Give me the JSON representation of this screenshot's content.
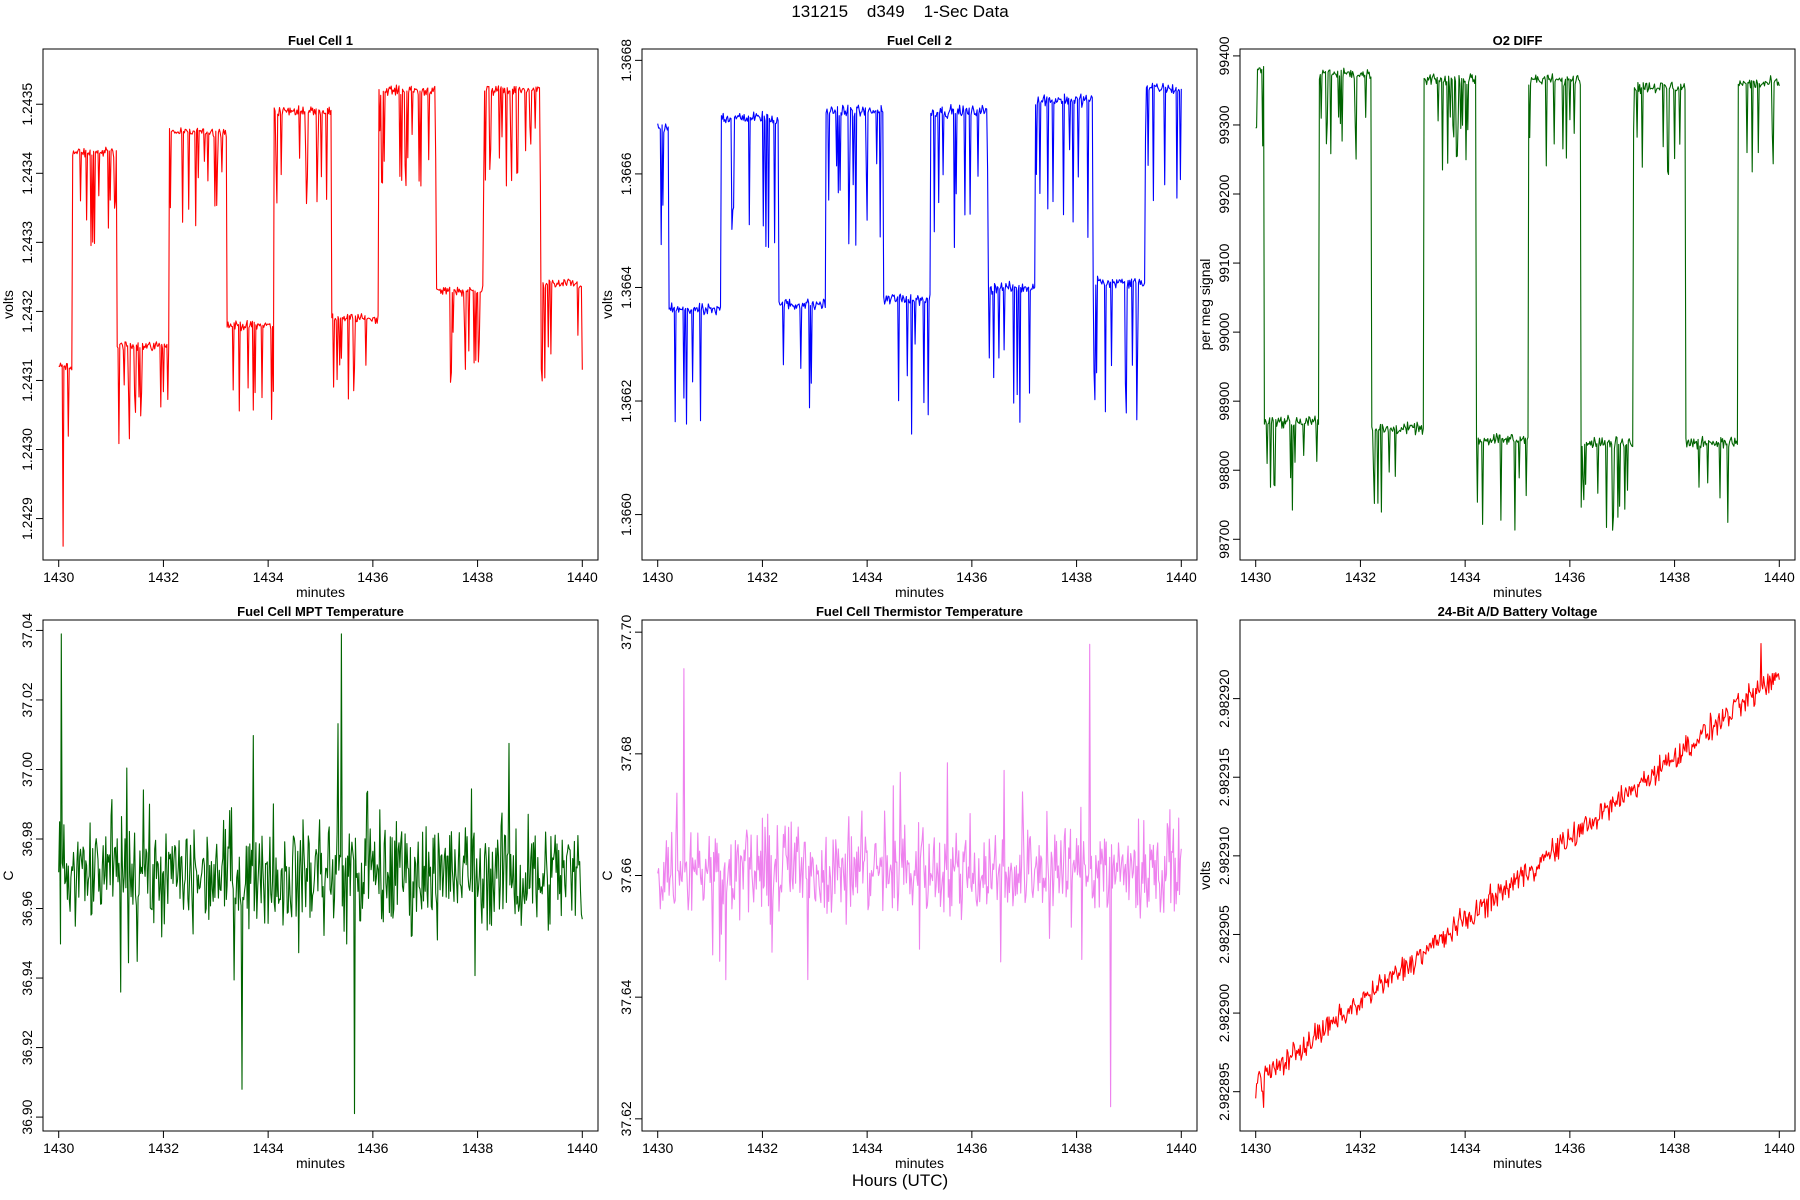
{
  "page": {
    "title": "131215    d349    1-Sec Data",
    "xlabel": "Hours (UTC)"
  },
  "colors": {
    "red": "#ff0000",
    "blue": "#0000ff",
    "green": "#006400",
    "violet": "#ee82ee"
  },
  "chart_data": [
    {
      "type": "line",
      "title": "Fuel Cell 1",
      "xlabel": "minutes",
      "ylabel": "volts",
      "xlim": [
        1429.7,
        1440.3
      ],
      "ylim": [
        1.24284,
        1.24358
      ],
      "xticks": [
        "1430",
        "1432",
        "1434",
        "1436",
        "1438",
        "1440"
      ],
      "yticks": [
        "1.2429",
        "1.2430",
        "1.2431",
        "1.2432",
        "1.2433",
        "1.2434",
        "1.2435"
      ],
      "grid": false,
      "series": [
        {
          "color": "red",
          "pattern": "square",
          "x_range": [
            1430.0,
            1440.0
          ],
          "segments": [
            {
              "x_start": 1430.0,
              "x_end": 1430.25,
              "level": 1.24312
            },
            {
              "x_start": 1430.25,
              "x_end": 1431.1,
              "level": 1.24343
            },
            {
              "x_start": 1431.1,
              "x_end": 1432.1,
              "level": 1.24315
            },
            {
              "x_start": 1432.1,
              "x_end": 1433.2,
              "level": 1.24346
            },
            {
              "x_start": 1433.2,
              "x_end": 1434.1,
              "level": 1.24318
            },
            {
              "x_start": 1434.1,
              "x_end": 1435.2,
              "level": 1.24349
            },
            {
              "x_start": 1435.2,
              "x_end": 1436.1,
              "level": 1.24319
            },
            {
              "x_start": 1436.1,
              "x_end": 1437.2,
              "level": 1.24352
            },
            {
              "x_start": 1437.2,
              "x_end": 1438.1,
              "level": 1.24323
            },
            {
              "x_start": 1438.1,
              "x_end": 1439.2,
              "level": 1.24352
            },
            {
              "x_start": 1439.2,
              "x_end": 1440.0,
              "level": 1.24324
            }
          ],
          "dip_depth": 0.00012,
          "noise": 1e-05,
          "min_point": {
            "x": 1430.08,
            "y": 1.24286
          }
        }
      ]
    },
    {
      "type": "line",
      "title": "Fuel Cell 2",
      "xlabel": "minutes",
      "ylabel": "volts",
      "xlim": [
        1429.7,
        1440.3
      ],
      "ylim": [
        1.36592,
        1.36682
      ],
      "xticks": [
        "1430",
        "1432",
        "1434",
        "1436",
        "1438",
        "1440"
      ],
      "yticks": [
        "1.3660",
        "1.3662",
        "1.3664",
        "1.3666",
        "1.3668"
      ],
      "grid": false,
      "series": [
        {
          "color": "blue",
          "pattern": "square",
          "x_range": [
            1430.0,
            1440.0
          ],
          "segments": [
            {
              "x_start": 1430.0,
              "x_end": 1430.2,
              "level": 1.36668
            },
            {
              "x_start": 1430.2,
              "x_end": 1431.2,
              "level": 1.36636
            },
            {
              "x_start": 1431.2,
              "x_end": 1432.3,
              "level": 1.3667
            },
            {
              "x_start": 1432.3,
              "x_end": 1433.2,
              "level": 1.36637
            },
            {
              "x_start": 1433.2,
              "x_end": 1434.3,
              "level": 1.36671
            },
            {
              "x_start": 1434.3,
              "x_end": 1435.2,
              "level": 1.36638
            },
            {
              "x_start": 1435.2,
              "x_end": 1436.3,
              "level": 1.36671
            },
            {
              "x_start": 1436.3,
              "x_end": 1437.2,
              "level": 1.3664
            },
            {
              "x_start": 1437.2,
              "x_end": 1438.3,
              "level": 1.36673
            },
            {
              "x_start": 1438.3,
              "x_end": 1439.3,
              "level": 1.36641
            },
            {
              "x_start": 1439.3,
              "x_end": 1440.0,
              "level": 1.36675
            }
          ],
          "dip_depth": 0.0002,
          "noise": 1.5e-05
        }
      ]
    },
    {
      "type": "line",
      "title": "O2 DIFF",
      "xlabel": "minutes",
      "ylabel": "per meg signal",
      "xlim": [
        1429.7,
        1440.3
      ],
      "ylim": [
        98670,
        99410
      ],
      "xticks": [
        "1430",
        "1432",
        "1434",
        "1436",
        "1438",
        "1440"
      ],
      "yticks": [
        "98700",
        "98800",
        "98900",
        "99000",
        "99100",
        "99200",
        "99300",
        "99400"
      ],
      "grid": false,
      "series": [
        {
          "color": "green",
          "pattern": "square",
          "x_range": [
            1430.0,
            1440.0
          ],
          "segments": [
            {
              "x_start": 1430.0,
              "x_end": 1430.15,
              "level": 99380
            },
            {
              "x_start": 1430.15,
              "x_end": 1431.2,
              "level": 98870
            },
            {
              "x_start": 1431.2,
              "x_end": 1432.2,
              "level": 99375
            },
            {
              "x_start": 1432.2,
              "x_end": 1433.2,
              "level": 98860
            },
            {
              "x_start": 1433.2,
              "x_end": 1434.2,
              "level": 99365
            },
            {
              "x_start": 1434.2,
              "x_end": 1435.2,
              "level": 98845
            },
            {
              "x_start": 1435.2,
              "x_end": 1436.2,
              "level": 99365
            },
            {
              "x_start": 1436.2,
              "x_end": 1437.2,
              "level": 98840
            },
            {
              "x_start": 1437.2,
              "x_end": 1438.2,
              "level": 99355
            },
            {
              "x_start": 1438.2,
              "x_end": 1439.2,
              "level": 98840
            },
            {
              "x_start": 1439.2,
              "x_end": 1440.0,
              "level": 99360
            }
          ],
          "dip_depth": 110,
          "noise": 12
        }
      ]
    },
    {
      "type": "line",
      "title": "Fuel Cell MPT Temperature",
      "xlabel": "minutes",
      "ylabel": "C",
      "xlim": [
        1429.7,
        1440.3
      ],
      "ylim": [
        36.896,
        37.043
      ],
      "xticks": [
        "1430",
        "1432",
        "1434",
        "1436",
        "1438",
        "1440"
      ],
      "yticks": [
        "36.90",
        "36.92",
        "36.94",
        "36.96",
        "36.98",
        "37.00",
        "37.02",
        "37.04"
      ],
      "grid": false,
      "series": [
        {
          "color": "green",
          "pattern": "noise",
          "x_range": [
            1430.0,
            1440.0
          ],
          "mean": 36.97,
          "spread": 0.022,
          "extremes": [
            {
              "x": 1430.05,
              "y": 37.039
            },
            {
              "x": 1435.65,
              "y": 36.901
            },
            {
              "x": 1433.5,
              "y": 36.908
            },
            {
              "x": 1435.4,
              "y": 37.039
            }
          ]
        }
      ]
    },
    {
      "type": "line",
      "title": "Fuel Cell Thermistor Temperature",
      "xlabel": "minutes",
      "ylabel": "C",
      "xlim": [
        1429.7,
        1440.3
      ],
      "ylim": [
        37.618,
        37.702
      ],
      "xticks": [
        "1430",
        "1432",
        "1434",
        "1436",
        "1438",
        "1440"
      ],
      "yticks": [
        "37.62",
        "37.64",
        "37.66",
        "37.68",
        "37.70"
      ],
      "grid": false,
      "series": [
        {
          "color": "violet",
          "pattern": "noise",
          "x_range": [
            1430.0,
            1440.0
          ],
          "mean": 37.661,
          "spread": 0.011,
          "extremes": [
            {
              "x": 1438.25,
              "y": 37.698
            },
            {
              "x": 1438.65,
              "y": 37.622
            },
            {
              "x": 1430.5,
              "y": 37.694
            }
          ]
        }
      ]
    },
    {
      "type": "line",
      "title": "24-Bit A/D Battery Voltage",
      "xlabel": "minutes",
      "ylabel": "volts",
      "xlim": [
        1429.7,
        1440.3
      ],
      "ylim": [
        2.9828925,
        2.982925
      ],
      "xticks": [
        "1430",
        "1432",
        "1434",
        "1436",
        "1438",
        "1440"
      ],
      "yticks": [
        "2.982895",
        "2.982900",
        "2.982905",
        "2.982910",
        "2.982915",
        "2.982920"
      ],
      "grid": false,
      "series": [
        {
          "color": "red",
          "pattern": "trend",
          "x_range": [
            1430.0,
            1440.0
          ],
          "start": 2.9828955,
          "end": 2.9829215,
          "spread": 1.2e-06,
          "extremes": [
            {
              "x": 1439.65,
              "y": 2.9829235
            },
            {
              "x": 1430.15,
              "y": 2.982894
            }
          ]
        }
      ]
    }
  ]
}
